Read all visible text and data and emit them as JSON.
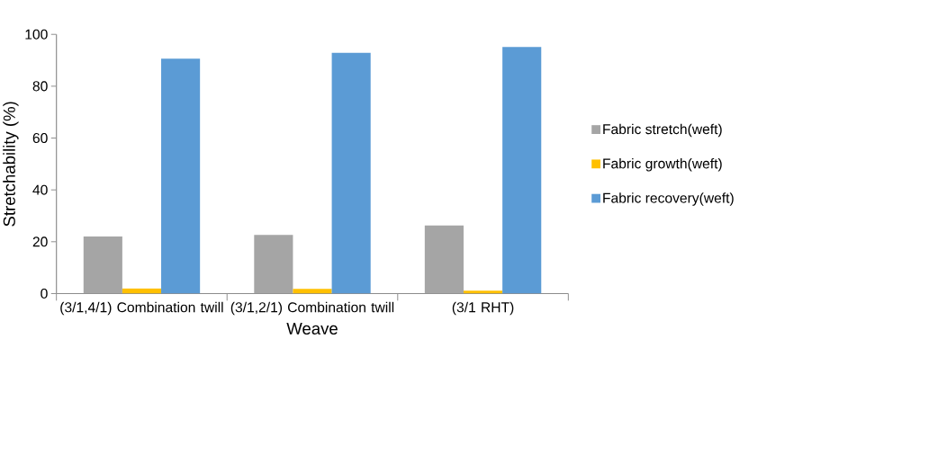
{
  "chart_data": {
    "type": "bar",
    "xlabel": "Weave",
    "ylabel": "Stretchability (%)",
    "categories": [
      "(3/1,4/1) Combination twill",
      "(3/1,2/1) Combination twill",
      "(3/1 RHT)"
    ],
    "series": [
      {
        "name": "Fabric stretch(weft)",
        "color": "#a5a5a5",
        "values": [
          22.0,
          22.6,
          26.3
        ]
      },
      {
        "name": "Fabric growth(weft)",
        "color": "#ffc000",
        "values": [
          2.0,
          1.8,
          1.1
        ]
      },
      {
        "name": "Fabric recovery(weft)",
        "color": "#5b9bd5",
        "values": [
          90.6,
          92.9,
          95.1
        ]
      }
    ],
    "ylim": [
      0,
      100
    ],
    "yticks": [
      0,
      20,
      40,
      60,
      80,
      100
    ],
    "grid": false,
    "legend": "right"
  }
}
